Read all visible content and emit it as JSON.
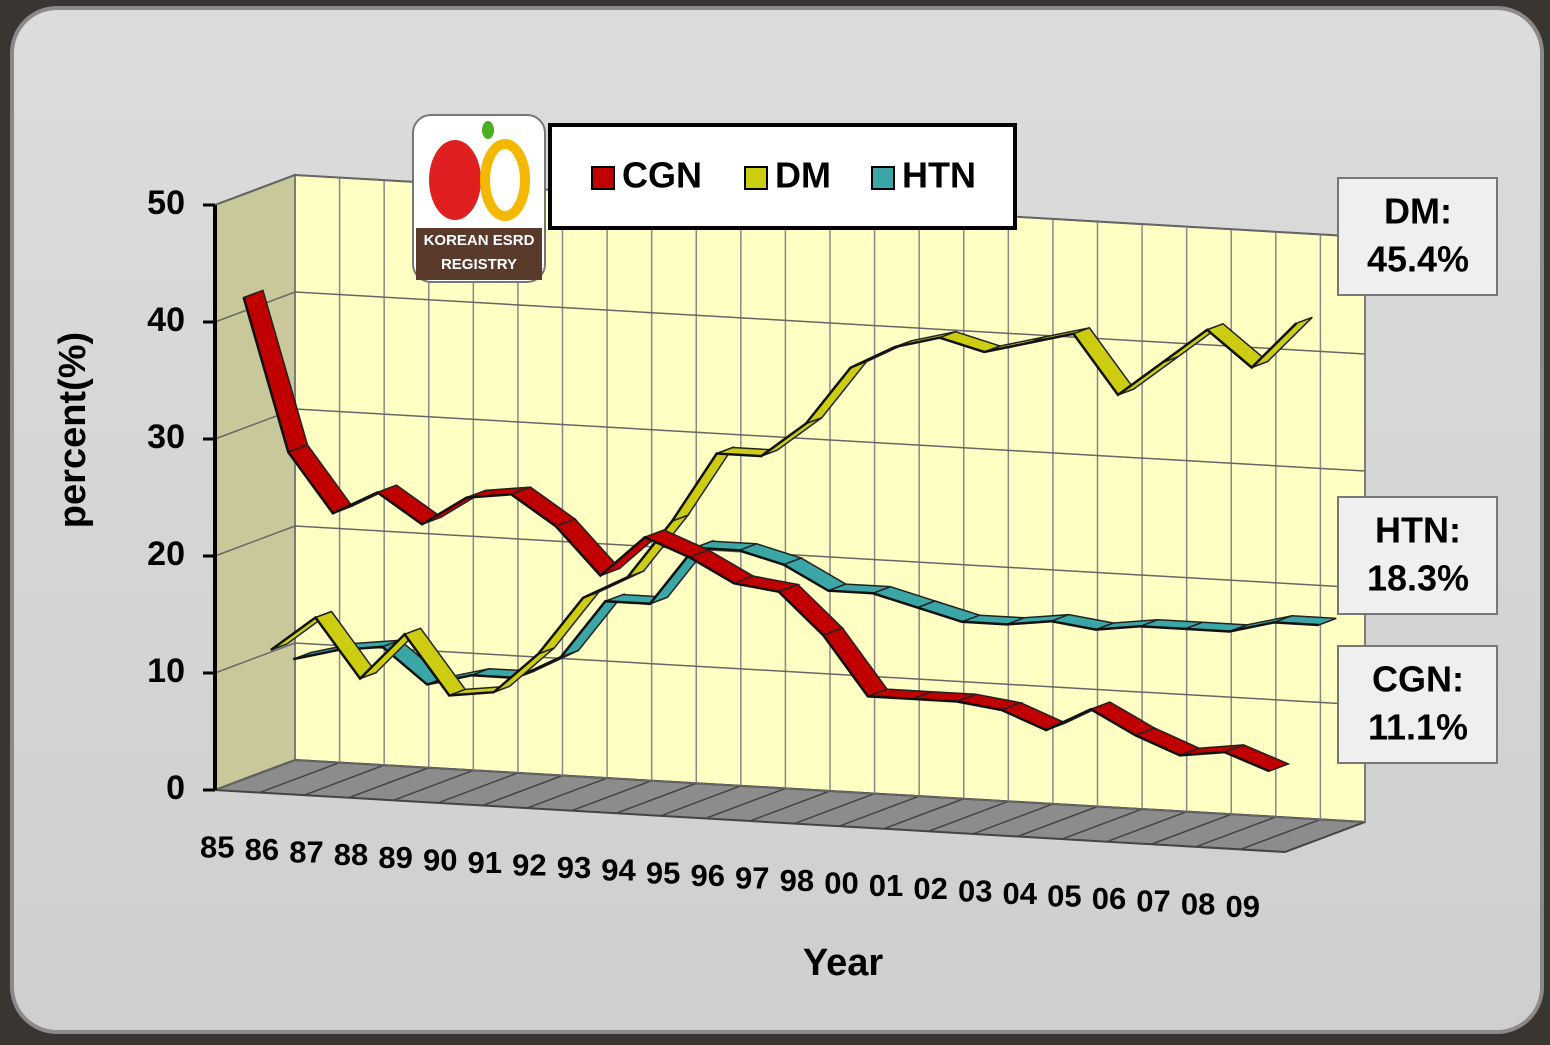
{
  "chart_data": {
    "type": "line3d",
    "y_label": "percent(%)",
    "x_label": "Year",
    "categories": [
      "85",
      "86",
      "87",
      "88",
      "89",
      "90",
      "91",
      "92",
      "93",
      "94",
      "95",
      "96",
      "97",
      "98",
      "00",
      "01",
      "02",
      "03",
      "04",
      "05",
      "06",
      "07",
      "08",
      "09"
    ],
    "series": [
      {
        "name": "CGN",
        "color": "#c00000",
        "values": [
          42,
          29,
          24,
          26,
          23.5,
          26,
          26.5,
          24,
          20,
          23.5,
          22,
          20,
          19.5,
          16,
          11,
          11,
          11,
          10.5,
          9,
          11,
          9,
          7.5,
          8,
          6.6
        ]
      },
      {
        "name": "DM",
        "color": "#cccc10",
        "values": [
          11,
          14,
          9,
          13,
          8,
          8.5,
          12,
          17,
          19,
          24,
          30,
          30,
          33,
          38,
          40,
          41,
          40,
          41,
          42,
          37,
          40,
          43,
          40,
          44
        ]
      },
      {
        "name": "HTN",
        "color": "#3aa6a6",
        "values": [
          9.5,
          10.5,
          11,
          8,
          9,
          9,
          11,
          16,
          16,
          21,
          21,
          20,
          18,
          18,
          17,
          16,
          16,
          16.5,
          16,
          16.5,
          16.5,
          16.5,
          17.5,
          17.5
        ]
      }
    ],
    "ylim": [
      0,
      50
    ],
    "yticks": [
      0,
      10,
      20,
      30,
      40,
      50
    ],
    "grid": true,
    "annotations": [
      [
        "DM:",
        "45.4%"
      ],
      [
        "HTN:",
        "18.3%"
      ],
      [
        "CGN:",
        "11.1%"
      ]
    ],
    "logo": [
      "KOREAN ESRD",
      "REGISTRY"
    ]
  }
}
